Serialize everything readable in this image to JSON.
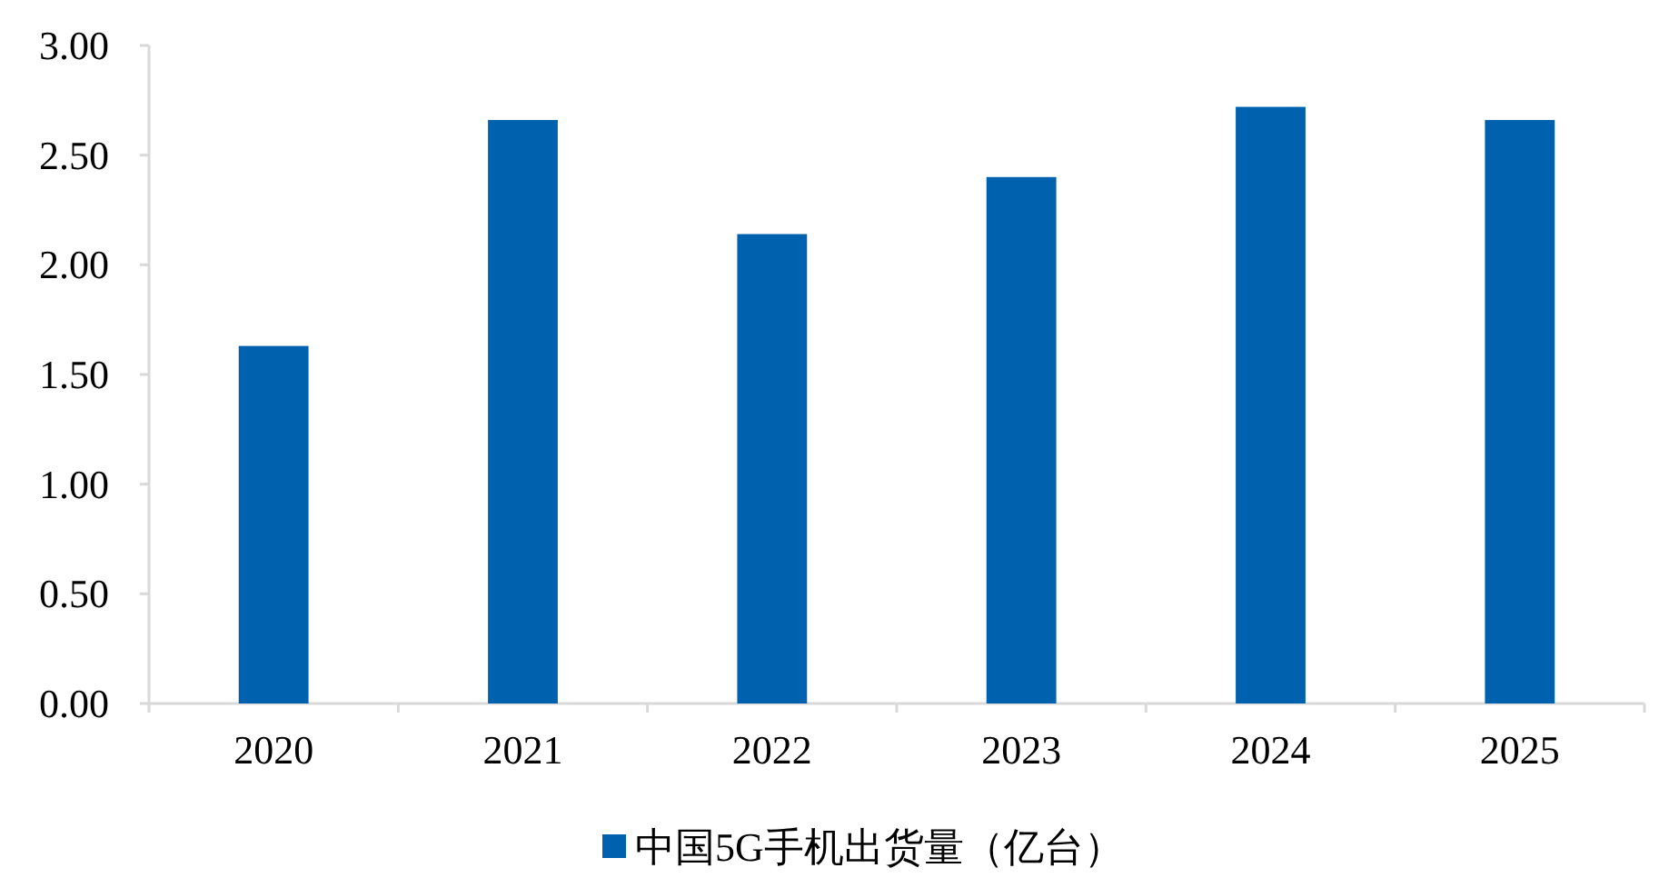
{
  "chart_data": {
    "type": "bar",
    "categories": [
      "2020",
      "2021",
      "2022",
      "2023",
      "2024",
      "2025"
    ],
    "series": [
      {
        "name": "中国5G手机出货量（亿台）",
        "color": "#0061ae",
        "values": [
          1.63,
          2.66,
          2.14,
          2.4,
          2.72,
          2.66
        ]
      }
    ],
    "ylim": [
      0,
      3
    ],
    "yticks": [
      {
        "value": 0,
        "label": "0.00"
      },
      {
        "value": 0.5,
        "label": "0.50"
      },
      {
        "value": 1,
        "label": "1.00"
      },
      {
        "value": 1.5,
        "label": "1.50"
      },
      {
        "value": 2,
        "label": "2.00"
      },
      {
        "value": 2.5,
        "label": "2.50"
      },
      {
        "value": 3,
        "label": "3.00"
      }
    ],
    "grid": false,
    "legend": "bottom"
  }
}
